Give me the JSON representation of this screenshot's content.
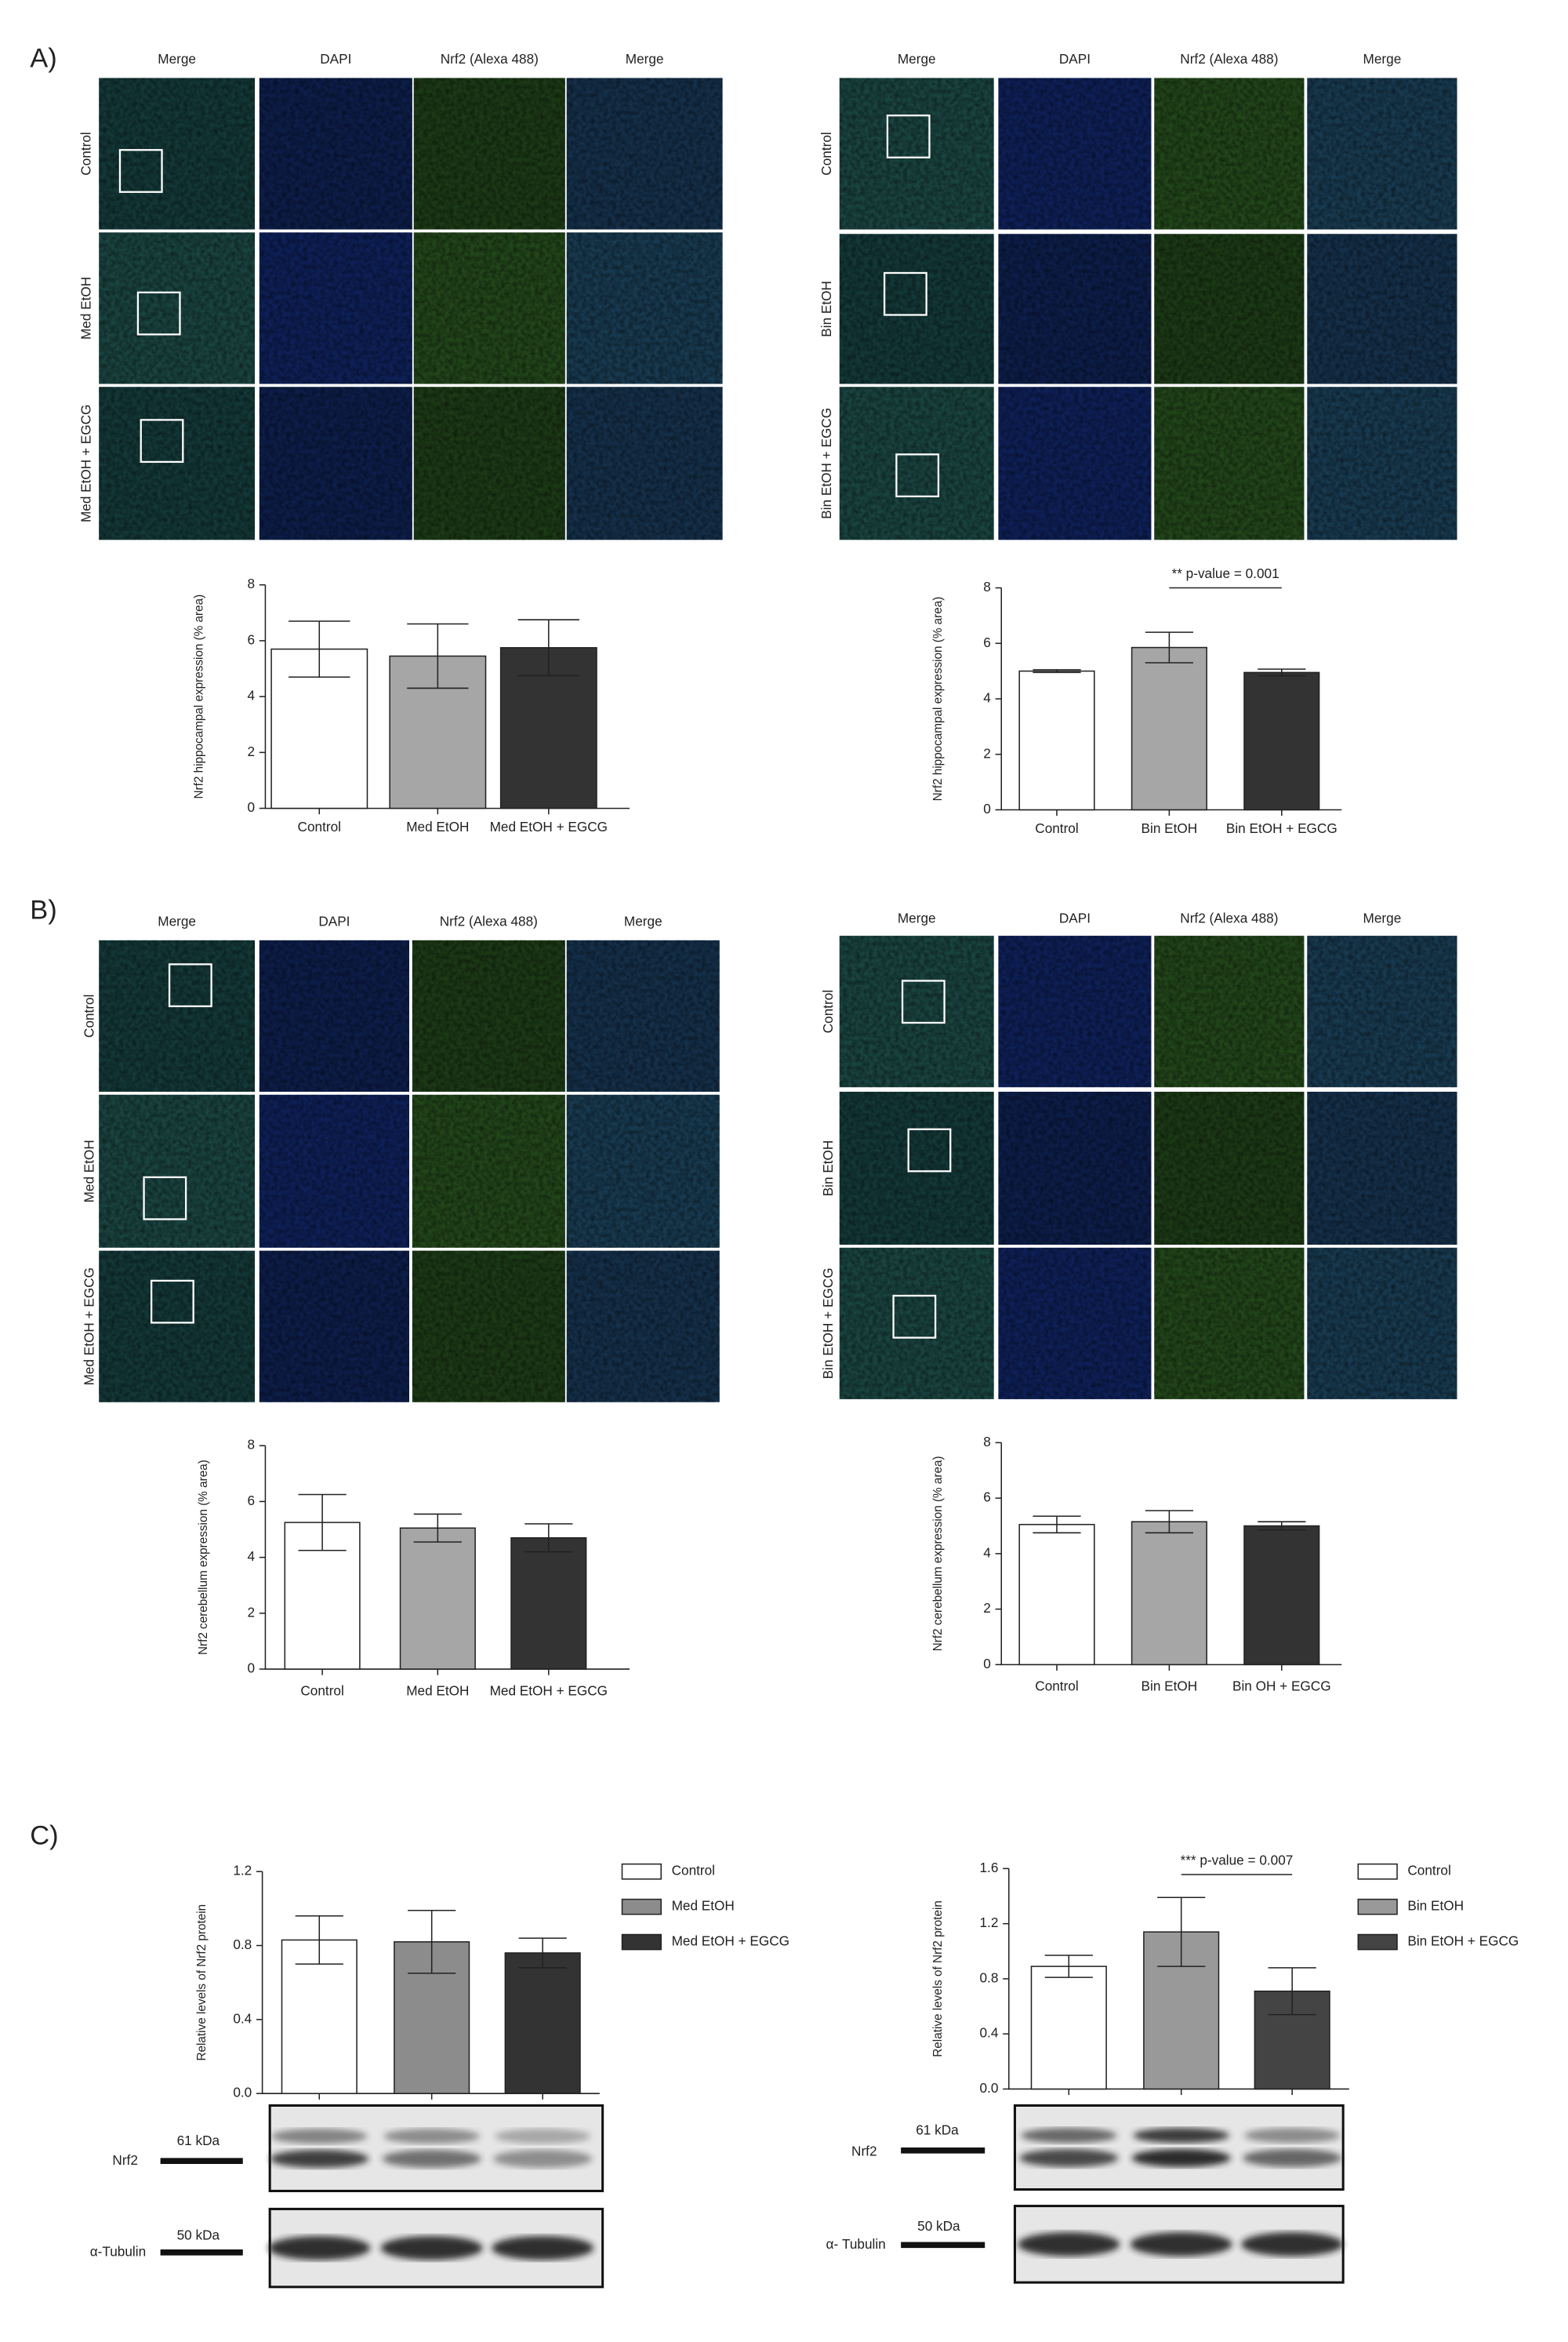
{
  "panel_labels": [
    "A)",
    "B)",
    "C)"
  ],
  "micrographs": [
    {
      "columns": [
        "Merge",
        "DAPI",
        "Nrf2 (Alexa 488)",
        "Merge"
      ],
      "rows": [
        "Control",
        "Med EtOH",
        "Med EtOH + EGCG"
      ]
    },
    {
      "columns": [
        "Merge",
        "DAPI",
        "Nrf2 (Alexa 488)",
        "Merge"
      ],
      "rows": [
        "Control",
        "Bin EtOH",
        "Bin EtOH + EGCG"
      ]
    },
    {
      "columns": [
        "Merge",
        "DAPI",
        "Nrf2 (Alexa 488)",
        "Merge"
      ],
      "rows": [
        "Control",
        "Med EtOH",
        "Med EtOH + EGCG"
      ]
    },
    {
      "columns": [
        "Merge",
        "DAPI",
        "Nrf2 (Alexa 488)",
        "Merge"
      ],
      "rows": [
        "Control",
        "Bin EtOH",
        "Bin EtOH + EGCG"
      ]
    }
  ],
  "chart_data": [
    {
      "type": "bar",
      "y_label": "Nrf2 hippocampal expression (% area)",
      "categories": [
        "Control",
        "Med EtOH",
        "Med EtOH + EGCG"
      ],
      "values": [
        5.7,
        5.45,
        5.75
      ],
      "errors": [
        1.0,
        1.15,
        1.0
      ],
      "colors": [
        "#ffffff",
        "#a6a6a6",
        "#333333"
      ],
      "ylim": [
        0,
        8
      ],
      "yticks": [
        0,
        2,
        4,
        6,
        8
      ]
    },
    {
      "type": "bar",
      "y_label": "Nrf2 hippocampal expression (% area)",
      "categories": [
        "Control",
        "Bin EtOH",
        "Bin EtOH + EGCG"
      ],
      "values": [
        5.0,
        5.85,
        4.95
      ],
      "errors": [
        0.05,
        0.55,
        0.12
      ],
      "colors": [
        "#ffffff",
        "#a6a6a6",
        "#333333"
      ],
      "ylim": [
        0,
        8
      ],
      "yticks": [
        0,
        2,
        4,
        6,
        8
      ],
      "annotation": "** p-value = 0.001"
    },
    {
      "type": "bar",
      "y_label": "Nrf2 cerebellum expression (% area)",
      "categories": [
        "Control",
        "Med EtOH",
        "Med EtOH + EGCG"
      ],
      "values": [
        5.25,
        5.05,
        4.7
      ],
      "errors": [
        1.0,
        0.5,
        0.5
      ],
      "colors": [
        "#ffffff",
        "#a6a6a6",
        "#333333"
      ],
      "ylim": [
        0,
        8
      ],
      "yticks": [
        0,
        2,
        4,
        6,
        8
      ]
    },
    {
      "type": "bar",
      "y_label": "Nrf2 cerebellum expression (% area)",
      "categories": [
        "Control",
        "Bin EtOH",
        "Bin OH + EGCG"
      ],
      "values": [
        5.05,
        5.15,
        5.0
      ],
      "errors": [
        0.3,
        0.4,
        0.15
      ],
      "colors": [
        "#ffffff",
        "#a6a6a6",
        "#333333"
      ],
      "ylim": [
        0,
        8
      ],
      "yticks": [
        0,
        2,
        4,
        6,
        8
      ]
    },
    {
      "type": "bar",
      "y_label": "Relative levels of Nrf2 protein",
      "categories": [
        "Control",
        "Med EtOH",
        "Med EtOH + EGCG"
      ],
      "values": [
        0.83,
        0.82,
        0.76
      ],
      "errors": [
        0.13,
        0.17,
        0.08
      ],
      "colors": [
        "#ffffff",
        "#8c8c8c",
        "#333333"
      ],
      "ylim": [
        0,
        1.2
      ],
      "yticks": [
        {
          "value": 0,
          "label": "0.0"
        },
        0.4,
        0.8,
        1.2
      ],
      "legend": "right"
    },
    {
      "type": "bar",
      "y_label": "Relative levels of Nrf2 protein",
      "categories": [
        "Control",
        "Bin EtOH",
        "Bin EtOH + EGCG"
      ],
      "values": [
        0.89,
        1.14,
        0.71
      ],
      "errors": [
        0.08,
        0.25,
        0.17
      ],
      "colors": [
        "#ffffff",
        "#999999",
        "#444444"
      ],
      "ylim": [
        0,
        1.6
      ],
      "yticks": [
        {
          "value": 0,
          "label": "0.0"
        },
        0.4,
        0.8,
        1.2,
        1.6
      ],
      "legend": "right",
      "annotation": "*** p-value = 0.007"
    }
  ],
  "blots": [
    {
      "bands": [
        {
          "name": "Nrf2",
          "size": "61 kDa"
        },
        {
          "name": "α-Tubulin",
          "size": "50 kDa"
        }
      ]
    },
    {
      "bands": [
        {
          "name": "Nrf2",
          "size": "61 kDa"
        },
        {
          "name": "α- Tubulin",
          "size": "50 kDa"
        }
      ]
    }
  ]
}
